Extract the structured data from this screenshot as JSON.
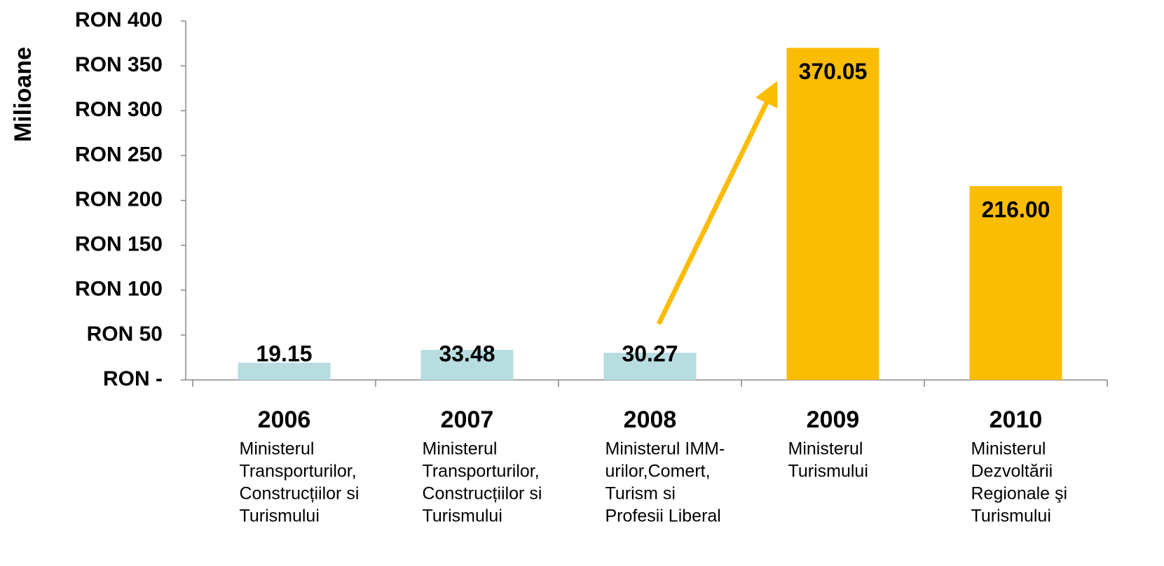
{
  "chart_data": {
    "type": "bar",
    "y_axis_label": "Milioane",
    "categories": [
      "2006",
      "2007",
      "2008",
      "2009",
      "2010"
    ],
    "descriptions": [
      [
        "Ministerul",
        "Transporturilor,",
        "Construcțiilor si",
        "Turismului"
      ],
      [
        "Ministerul",
        "Transporturilor,",
        "Construcțiilor si",
        "Turismului"
      ],
      [
        "Ministerul IMM-",
        "urilor,Comert,",
        "Turism si",
        "Profesii Liberal"
      ],
      [
        "Ministerul",
        "Turismului"
      ],
      [
        "Ministerul",
        "Dezvoltării",
        "Regionale şi",
        "Turismului"
      ]
    ],
    "values": [
      19.15,
      33.48,
      30.27,
      370.05,
      216
    ],
    "value_labels": [
      "19.15",
      "33.48",
      "30.27",
      "370.05",
      "216.00"
    ],
    "colors": [
      "#b7dde0",
      "#b7dde0",
      "#b7dde0",
      "#fbbc04",
      "#fbbc04"
    ],
    "ylim": [
      0,
      400
    ],
    "yticks": [
      {
        "value": 0,
        "label": "RON -"
      },
      {
        "value": 50,
        "label": "RON 50"
      },
      {
        "value": 100,
        "label": "RON 100"
      },
      {
        "value": 150,
        "label": "RON 150"
      },
      {
        "value": 200,
        "label": "RON 200"
      },
      {
        "value": 250,
        "label": "RON 250"
      },
      {
        "value": 300,
        "label": "RON 300"
      },
      {
        "value": 350,
        "label": "RON 350"
      },
      {
        "value": 400,
        "label": "RON 400"
      }
    ],
    "grid": false
  }
}
